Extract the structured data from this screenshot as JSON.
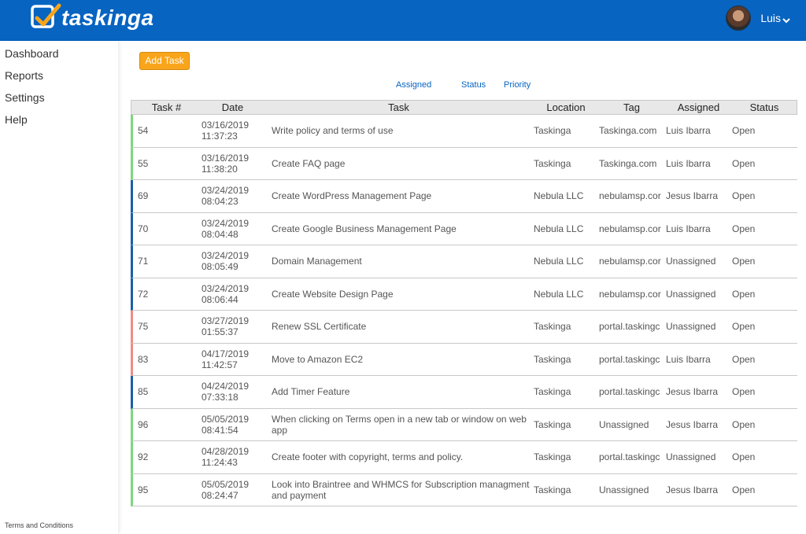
{
  "header": {
    "brand": "taskinga",
    "user_name": "Luis",
    "brand_color": "#0764c1"
  },
  "sidebar": {
    "items": [
      {
        "label": "Dashboard"
      },
      {
        "label": "Reports"
      },
      {
        "label": "Settings"
      },
      {
        "label": "Help"
      }
    ],
    "footer_link": "Terms and Conditions"
  },
  "toolbar": {
    "add_label": "Add Task"
  },
  "filters": {
    "assigned": "Assigned",
    "status": "Status",
    "priority": "Priority"
  },
  "table": {
    "columns": [
      "Task #",
      "Date",
      "Task",
      "Location",
      "Tag",
      "Assigned",
      "Status"
    ],
    "rows": [
      {
        "num": "54",
        "date": "03/16/2019",
        "time": "11:37:23",
        "task": "Write policy and terms of use",
        "location": "Taskinga",
        "tag": "Taskinga.com",
        "assigned": "Luis Ibarra",
        "status": "Open",
        "color": "#7ed67e"
      },
      {
        "num": "55",
        "date": "03/16/2019",
        "time": "11:38:20",
        "task": "Create FAQ page",
        "location": "Taskinga",
        "tag": "Taskinga.com",
        "assigned": "Luis Ibarra",
        "status": "Open",
        "color": "#7ed67e"
      },
      {
        "num": "69",
        "date": "03/24/2019",
        "time": "08:04:23",
        "task": "Create WordPress Management Page",
        "location": "Nebula LLC",
        "tag": "nebulamsp.cor",
        "assigned": "Jesus Ibarra",
        "status": "Open",
        "color": "#1c5fa8"
      },
      {
        "num": "70",
        "date": "03/24/2019",
        "time": "08:04:48",
        "task": "Create Google Business Management Page",
        "location": "Nebula LLC",
        "tag": "nebulamsp.cor",
        "assigned": "Luis Ibarra",
        "status": "Open",
        "color": "#1c5fa8"
      },
      {
        "num": "71",
        "date": "03/24/2019",
        "time": "08:05:49",
        "task": "Domain Management",
        "location": "Nebula LLC",
        "tag": "nebulamsp.cor",
        "assigned": "Unassigned",
        "status": "Open",
        "color": "#1c5fa8"
      },
      {
        "num": "72",
        "date": "03/24/2019",
        "time": "08:06:44",
        "task": "Create Website Design Page",
        "location": "Nebula LLC",
        "tag": "nebulamsp.cor",
        "assigned": "Unassigned",
        "status": "Open",
        "color": "#1c5fa8"
      },
      {
        "num": "75",
        "date": "03/27/2019",
        "time": "01:55:37",
        "task": "Renew SSL Certificate",
        "location": "Taskinga",
        "tag": "portal.taskingc",
        "assigned": "Unassigned",
        "status": "Open",
        "color": "#f08b84"
      },
      {
        "num": "83",
        "date": "04/17/2019",
        "time": "11:42:57",
        "task": "Move to Amazon EC2",
        "location": "Taskinga",
        "tag": "portal.taskingc",
        "assigned": "Luis Ibarra",
        "status": "Open",
        "color": "#f08b84"
      },
      {
        "num": "85",
        "date": "04/24/2019",
        "time": "07:33:18",
        "task": "Add Timer Feature",
        "location": "Taskinga",
        "tag": "portal.taskingc",
        "assigned": "Jesus Ibarra",
        "status": "Open",
        "color": "#1c5fa8"
      },
      {
        "num": "96",
        "date": "05/05/2019",
        "time": "08:41:54",
        "task": "When clicking on Terms open in a new tab or window on web app",
        "location": "Taskinga",
        "tag": "Unassigned",
        "assigned": "Jesus Ibarra",
        "status": "Open",
        "color": "#7ed67e"
      },
      {
        "num": "92",
        "date": "04/28/2019",
        "time": "11:24:43",
        "task": "Create footer with copyright, terms and policy.",
        "location": "Taskinga",
        "tag": "portal.taskingc",
        "assigned": "Unassigned",
        "status": "Open",
        "color": "#7ed67e"
      },
      {
        "num": "95",
        "date": "05/05/2019",
        "time": "08:24:47",
        "task": "Look into Braintree and WHMCS for Subscription managment and payment",
        "location": "Taskinga",
        "tag": "Unassigned",
        "assigned": "Jesus Ibarra",
        "status": "Open",
        "color": "#7ed67e"
      }
    ]
  }
}
